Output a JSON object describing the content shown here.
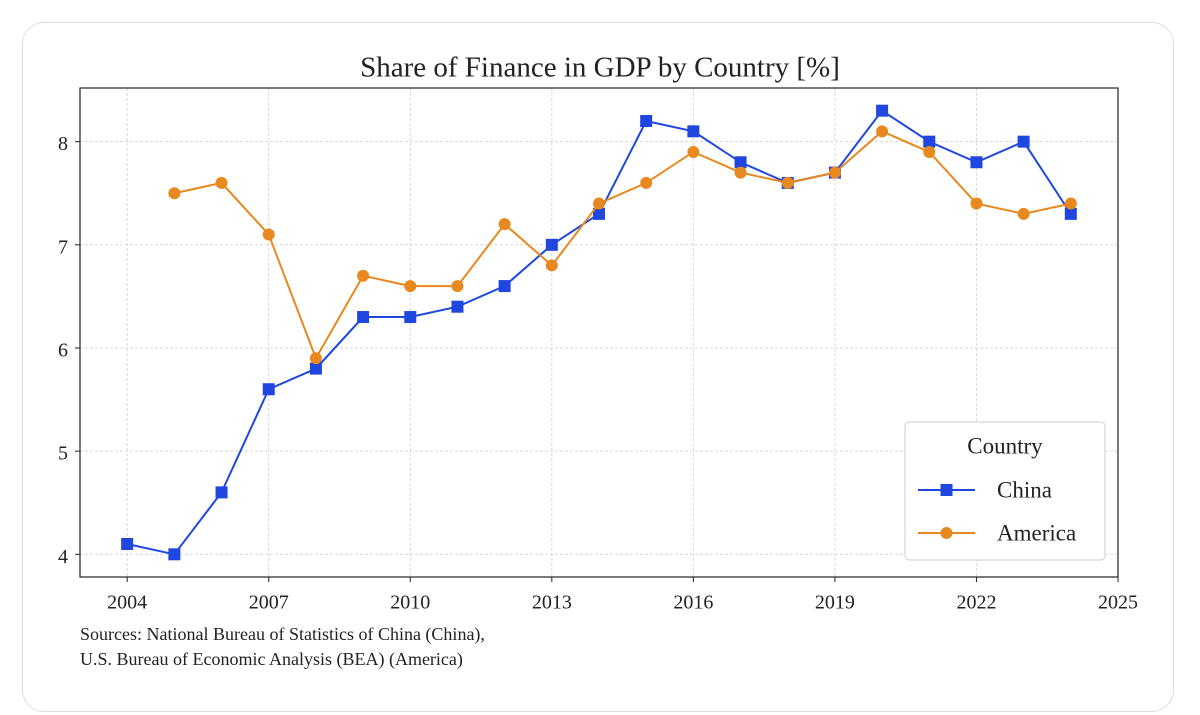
{
  "chart_data": {
    "type": "line",
    "title": "Share of Finance in GDP by Country [%]",
    "x": [
      2004,
      2005,
      2006,
      2007,
      2008,
      2009,
      2010,
      2011,
      2012,
      2013,
      2014,
      2015,
      2016,
      2017,
      2018,
      2019,
      2020,
      2021,
      2022,
      2023,
      2024
    ],
    "series": [
      {
        "name": "China",
        "color": "#1f47e0",
        "marker": "square",
        "values": [
          4.1,
          4.0,
          4.6,
          5.6,
          5.8,
          6.3,
          6.3,
          6.4,
          6.6,
          7.0,
          7.3,
          8.2,
          8.1,
          7.8,
          7.6,
          7.7,
          8.3,
          8.0,
          7.8,
          8.0,
          7.3
        ]
      },
      {
        "name": "America",
        "color": "#e8891f",
        "marker": "circle",
        "values": [
          null,
          7.5,
          7.6,
          7.1,
          5.9,
          6.7,
          6.6,
          6.6,
          7.2,
          6.8,
          7.4,
          7.6,
          7.9,
          7.7,
          7.6,
          7.7,
          8.1,
          7.9,
          7.4,
          7.3,
          7.4
        ]
      }
    ],
    "xlim": [
      2003,
      2025
    ],
    "xticks": [
      2004,
      2007,
      2010,
      2013,
      2016,
      2019,
      2022,
      2025
    ],
    "ylim": [
      3.78,
      8.52
    ],
    "yticks": [
      4,
      5,
      6,
      7,
      8
    ],
    "grid": true,
    "legend": {
      "title": "Country",
      "corner": "lower right"
    },
    "source": [
      "Sources: National Bureau of Statistics of China (China),",
      "U.S. Bureau of Economic Analysis (BEA) (America)"
    ]
  }
}
